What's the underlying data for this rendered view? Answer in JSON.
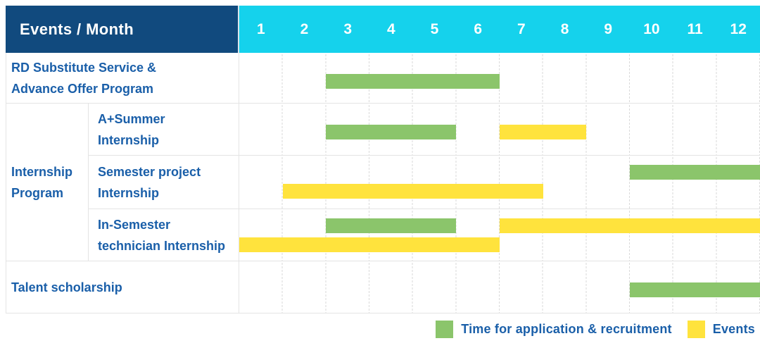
{
  "header": {
    "label": "Events / Month",
    "months": [
      "1",
      "2",
      "3",
      "4",
      "5",
      "6",
      "7",
      "8",
      "9",
      "10",
      "11",
      "12"
    ]
  },
  "group": {
    "label": [
      "Internship",
      "Program"
    ]
  },
  "rows": [
    {
      "id": "rd-substitute-service-advance-offer-program",
      "label": [
        "RD Substitute Service &",
        "Advance Offer Program"
      ],
      "bars": [
        {
          "color": "green",
          "start": 3,
          "end": 6,
          "lane": "single"
        }
      ]
    },
    {
      "id": "a-plus-summer-internship",
      "label": [
        "A+Summer",
        "Internship"
      ],
      "bars": [
        {
          "color": "green",
          "start": 3,
          "end": 5,
          "lane": "single"
        },
        {
          "color": "yellow",
          "start": 7,
          "end": 8,
          "lane": "single"
        }
      ]
    },
    {
      "id": "semester-project-internship",
      "label": [
        "Semester project",
        "Internship"
      ],
      "bars": [
        {
          "color": "green",
          "start": 10,
          "end": 12,
          "lane": "top"
        },
        {
          "color": "yellow",
          "start": 2,
          "end": 7,
          "lane": "bottom"
        }
      ]
    },
    {
      "id": "in-semester-technician-internship",
      "label": [
        "In-Semester",
        "technician Internship"
      ],
      "bars": [
        {
          "color": "green",
          "start": 3,
          "end": 5,
          "lane": "top"
        },
        {
          "color": "yellow",
          "start": 7,
          "end": 12,
          "lane": "top"
        },
        {
          "color": "yellow",
          "start": 1,
          "end": 6,
          "lane": "bottom"
        }
      ]
    },
    {
      "id": "talent-scholarship",
      "label": "Talent scholarship",
      "bars": [
        {
          "color": "green",
          "start": 10,
          "end": 12,
          "lane": "single"
        }
      ]
    }
  ],
  "legend": [
    {
      "color": "green",
      "label": "Time for application & recruitment"
    },
    {
      "color": "yellow",
      "label": "Events"
    }
  ],
  "colors": {
    "navy": "#114A7E",
    "cyan": "#15D2EC",
    "text_blue": "#1A5FA9",
    "green": "#8BC56B",
    "yellow": "#FFE33D",
    "grid": "#DADADA",
    "row_line": "#E4E4E4"
  },
  "chart_data": {
    "type": "gantt",
    "title": "Events / Month",
    "x_unit": "month",
    "x_domain": [
      1,
      12
    ],
    "x_ticks": [
      1,
      2,
      3,
      4,
      5,
      6,
      7,
      8,
      9,
      10,
      11,
      12
    ],
    "legend_entries": [
      "Time for application & recruitment",
      "Events"
    ],
    "legend_position": "bottom-right",
    "grid": true,
    "tasks": [
      {
        "row": "RD Substitute Service & Advance Offer Program",
        "group": null,
        "kind": "Time for application & recruitment",
        "start_month": 3,
        "end_month": 6
      },
      {
        "row": "A+Summer Internship",
        "group": "Internship Program",
        "kind": "Time for application & recruitment",
        "start_month": 3,
        "end_month": 5
      },
      {
        "row": "A+Summer Internship",
        "group": "Internship Program",
        "kind": "Events",
        "start_month": 7,
        "end_month": 8
      },
      {
        "row": "Semester project Internship",
        "group": "Internship Program",
        "kind": "Time for application & recruitment",
        "start_month": 10,
        "end_month": 12
      },
      {
        "row": "Semester project Internship",
        "group": "Internship Program",
        "kind": "Events",
        "start_month": 2,
        "end_month": 7
      },
      {
        "row": "In-Semester technician Internship",
        "group": "Internship Program",
        "kind": "Time for application & recruitment",
        "start_month": 3,
        "end_month": 5
      },
      {
        "row": "In-Semester technician Internship",
        "group": "Internship Program",
        "kind": "Events",
        "start_month": 7,
        "end_month": 12
      },
      {
        "row": "In-Semester technician Internship",
        "group": "Internship Program",
        "kind": "Events",
        "start_month": 1,
        "end_month": 6
      },
      {
        "row": "Talent scholarship",
        "group": null,
        "kind": "Time for application & recruitment",
        "start_month": 10,
        "end_month": 12
      }
    ]
  }
}
